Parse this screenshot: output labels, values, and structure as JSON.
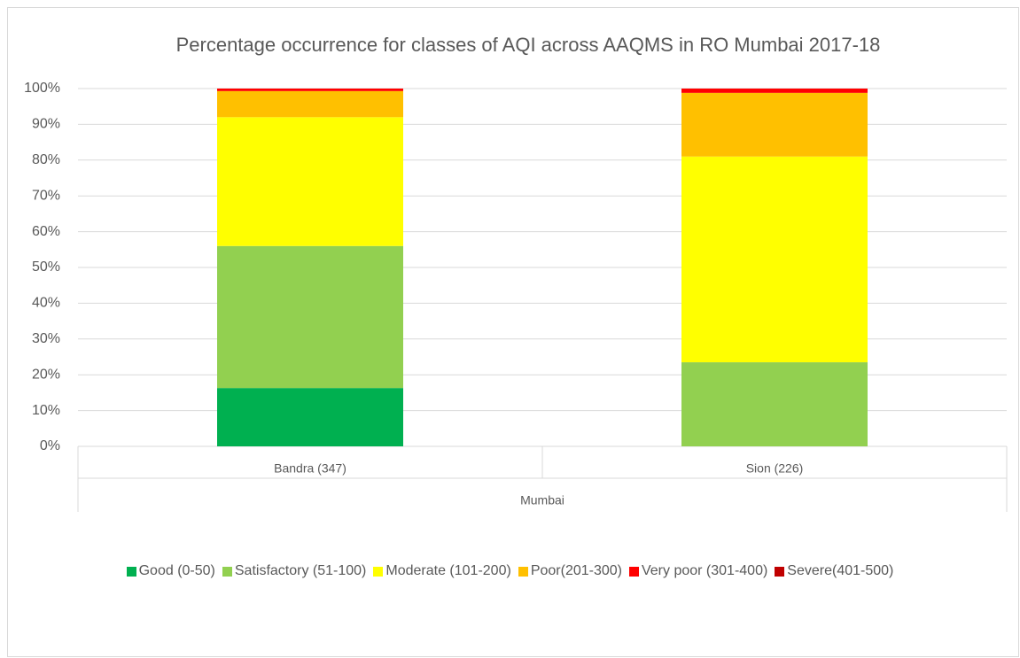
{
  "chart_data": {
    "type": "stacked_bar",
    "title": "Percentage occurrence for classes of AQI across AAQMS in RO Mumbai 2017-18",
    "categories": [
      "Bandra (347)",
      "Sion (226)"
    ],
    "group_label": "Mumbai",
    "series": [
      {
        "name": "Good (0-50)",
        "color": "#00b050",
        "values": [
          16.3,
          0
        ]
      },
      {
        "name": "Satisfactory (51-100)",
        "color": "#92d050",
        "values": [
          39.7,
          23.5
        ]
      },
      {
        "name": "Moderate (101-200)",
        "color": "#ffff00",
        "values": [
          36,
          57.5
        ]
      },
      {
        "name": "Poor(201-300)",
        "color": "#ffc000",
        "values": [
          7.3,
          17.8
        ]
      },
      {
        "name": "Very poor (301-400)",
        "color": "#ff0000",
        "values": [
          0.7,
          1.2
        ]
      },
      {
        "name": "Severe(401-500)",
        "color": "#c00000",
        "values": [
          0,
          0
        ]
      }
    ],
    "ylim": [
      0,
      100
    ],
    "yticks": [
      {
        "value": 0,
        "label": "0%"
      },
      {
        "value": 10,
        "label": "10%"
      },
      {
        "value": 20,
        "label": "20%"
      },
      {
        "value": 30,
        "label": "30%"
      },
      {
        "value": 40,
        "label": "40%"
      },
      {
        "value": 50,
        "label": "50%"
      },
      {
        "value": 60,
        "label": "60%"
      },
      {
        "value": 70,
        "label": "70%"
      },
      {
        "value": 80,
        "label": "80%"
      },
      {
        "value": 90,
        "label": "90%"
      },
      {
        "value": 100,
        "label": "100%"
      }
    ],
    "grid": true
  }
}
